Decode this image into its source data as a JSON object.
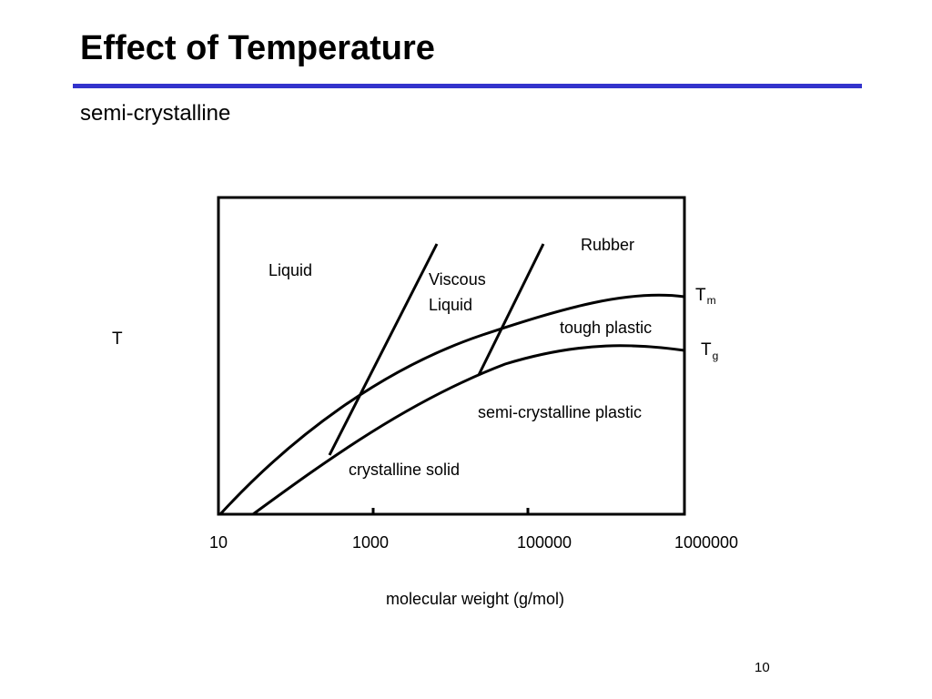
{
  "slide": {
    "title": "Effect of Temperature",
    "subtitle": "semi-crystalline",
    "page_number": "10",
    "rule_color": "#3333cc"
  },
  "diagram": {
    "y_axis_label": "T",
    "x_axis_label": "molecular weight (g/mol)",
    "x_ticks": [
      "10",
      "1000",
      "100000",
      "1000000"
    ],
    "regions": {
      "liquid": "Liquid",
      "viscous_line1": "Viscous",
      "viscous_line2": "Liquid",
      "rubber": "Rubber",
      "tough_plastic": "tough plastic",
      "semi_crystalline_plastic": "semi-crystalline plastic",
      "crystalline_solid": "crystalline solid"
    },
    "curves": {
      "tm_base": "T",
      "tm_sub": "m",
      "tg_base": "T",
      "tg_sub": "g"
    }
  }
}
